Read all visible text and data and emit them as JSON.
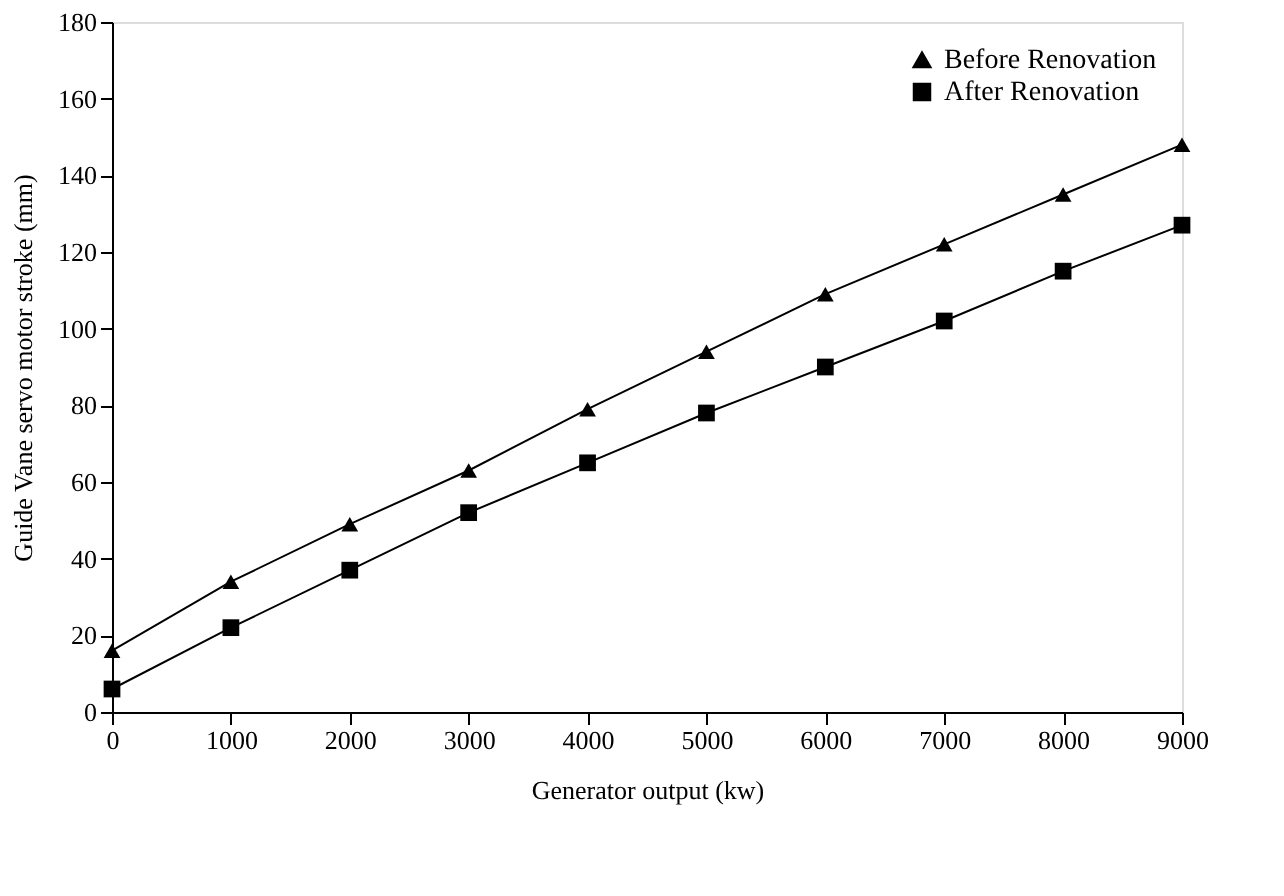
{
  "chart_data": {
    "type": "line",
    "xlabel": "Generator output (kw)",
    "ylabel": "Guide Vane servo motor stroke (mm)",
    "x": [
      0,
      1000,
      2000,
      3000,
      4000,
      5000,
      6000,
      7000,
      8000,
      9000
    ],
    "series": [
      {
        "name": "Before Renovation",
        "color": "#000000",
        "marker": "triangle",
        "values": [
          16,
          34,
          49,
          63,
          79,
          94,
          109,
          122,
          135,
          148
        ]
      },
      {
        "name": "After Renovation",
        "color": "#000000",
        "marker": "square",
        "values": [
          6,
          22,
          37,
          52,
          65,
          78,
          90,
          102,
          115,
          127
        ]
      }
    ],
    "xlim": [
      0,
      9000
    ],
    "xticks": [
      0,
      1000,
      2000,
      3000,
      4000,
      5000,
      6000,
      7000,
      8000,
      9000
    ],
    "ylim": [
      0,
      180
    ],
    "yticks": [
      0,
      20,
      40,
      60,
      80,
      100,
      120,
      140,
      160,
      180
    ],
    "grid": false,
    "legend": "top right",
    "line_style": "solid"
  }
}
